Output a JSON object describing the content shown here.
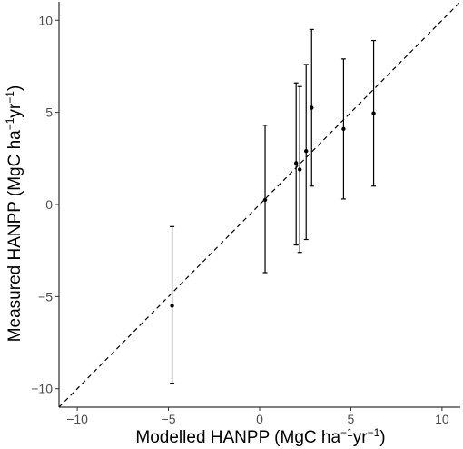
{
  "chart_data": {
    "type": "scatter",
    "xlabel": {
      "prefix": "Modelled HANPP (MgC ha",
      "exp1": "−1",
      "mid": "yr",
      "exp2": "−1",
      "suffix": ")"
    },
    "ylabel": {
      "prefix": "Measured HANPP (MgC ha",
      "exp1": "−1",
      "mid": "yr",
      "exp2": "−1",
      "suffix": ")"
    },
    "xlim": [
      -11,
      11
    ],
    "ylim": [
      -11,
      11
    ],
    "xticks": [
      -10,
      -5,
      0,
      5,
      10
    ],
    "yticks": [
      -10,
      -5,
      0,
      5,
      10
    ],
    "grid": false,
    "reference_line": {
      "type": "identity",
      "style": "dashed"
    },
    "points": [
      {
        "x": -4.8,
        "y": -5.5,
        "lower": -9.7,
        "upper": -1.2
      },
      {
        "x": 0.3,
        "y": 0.25,
        "lower": -3.7,
        "upper": 4.3
      },
      {
        "x": 2.0,
        "y": 2.25,
        "lower": -2.2,
        "upper": 6.6
      },
      {
        "x": 2.2,
        "y": 1.9,
        "lower": -2.6,
        "upper": 6.4
      },
      {
        "x": 2.55,
        "y": 2.9,
        "lower": -1.9,
        "upper": 7.6
      },
      {
        "x": 2.85,
        "y": 5.25,
        "lower": 1.0,
        "upper": 9.5
      },
      {
        "x": 4.6,
        "y": 4.1,
        "lower": 0.3,
        "upper": 7.9
      },
      {
        "x": 6.25,
        "y": 4.95,
        "lower": 1.0,
        "upper": 8.9
      }
    ]
  }
}
